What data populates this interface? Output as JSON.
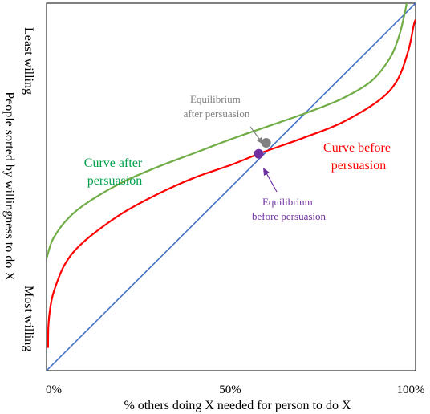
{
  "chart_data": {
    "type": "line",
    "xlabel": "% others doing X needed for person to do X",
    "ylabel": "People sorted by willingness to do X",
    "y_top_label": "Least willing",
    "y_bottom_label": "Most willing",
    "xlim": [
      0,
      100
    ],
    "ylim": [
      0,
      100
    ],
    "x_ticks": [
      {
        "value": 0,
        "label": "0%"
      },
      {
        "value": 50,
        "label": "50%"
      },
      {
        "value": 100,
        "label": "100%"
      }
    ],
    "grid": false,
    "legend": "none",
    "series": [
      {
        "color": "#4472c4",
        "x": [
          0,
          100
        ],
        "y": [
          0,
          100
        ]
      },
      {
        "color": "#ff0000",
        "x": [
          0.4,
          0.5,
          1,
          2,
          5,
          10,
          20,
          30,
          40,
          50,
          58,
          70,
          80,
          90,
          95,
          98,
          99.5,
          100
        ],
        "y": [
          6.2,
          12,
          17,
          21.6,
          29,
          35,
          42.5,
          48,
          52.5,
          56,
          59.2,
          63.5,
          67.5,
          73.5,
          79,
          87,
          94,
          95.5
        ]
      },
      {
        "color": "#70ad47",
        "x": [
          0,
          1,
          2,
          5,
          10,
          20,
          30,
          40,
          50,
          60,
          70,
          80,
          88,
          93,
          95.5,
          97,
          97.8
        ],
        "y": [
          30.5,
          34,
          36.3,
          40.5,
          45,
          51,
          55.4,
          59.2,
          63,
          66.5,
          70,
          74,
          78.8,
          85,
          91,
          97,
          101
        ]
      }
    ],
    "points": [
      {
        "name": "Equilibrium after persuasion",
        "x": 59.5,
        "y": 62,
        "color": "#808080"
      },
      {
        "name": "Equilibrium before persuasion",
        "x": 57.5,
        "y": 59,
        "color": "#7030a0"
      }
    ],
    "annotations": {
      "after": {
        "lines": [
          "Equilibrium",
          "after persuasion"
        ],
        "color": "#808080"
      },
      "before": {
        "lines": [
          "Equilibrium",
          "before persuasion"
        ],
        "color": "#7030a0"
      },
      "curve_after": {
        "lines": [
          "Curve after",
          "persuasion"
        ],
        "color": "#00a04a"
      },
      "curve_before": {
        "lines": [
          "Curve before",
          "persuasion"
        ],
        "color": "#ff0000"
      }
    }
  }
}
